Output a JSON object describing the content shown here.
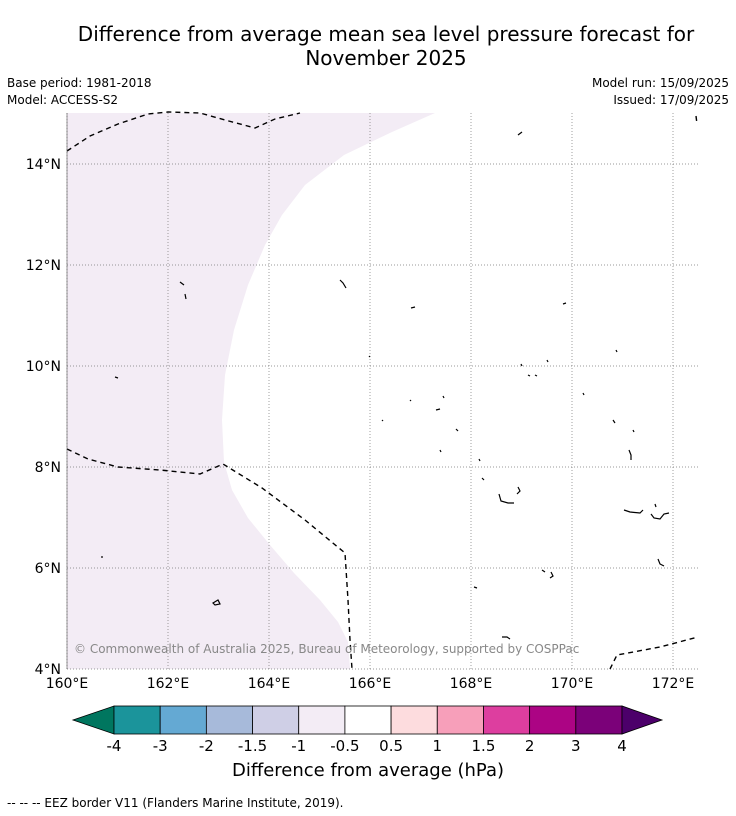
{
  "header": {
    "title_line1": "Difference from average mean sea level pressure forecast for",
    "title_line2": "November 2025",
    "base_period": "Base period: 1981-2018",
    "model": "Model: ACCESS-S2",
    "model_run": "Model run: 15/09/2025",
    "issued": "Issued: 17/09/2025"
  },
  "map": {
    "lon_ticks": [
      "160°E",
      "162°E",
      "164°E",
      "166°E",
      "168°E",
      "170°E",
      "172°E"
    ],
    "lat_ticks": [
      "14°N",
      "12°N",
      "10°N",
      "8°N",
      "6°N",
      "4°N"
    ],
    "copyright": "© Commonwealth of Australia 2025, Bureau of Meteorology, supported by COSPPac",
    "shading_color": "#f3ecf5",
    "shaded_category": "-1 to -0.5"
  },
  "colorbar": {
    "ticks": [
      "-4",
      "-3",
      "-2",
      "-1.5",
      "-1",
      "-0.5",
      "0.5",
      "1",
      "1.5",
      "2",
      "3",
      "4"
    ],
    "colors": [
      "#00765f",
      "#1b949b",
      "#64a9d3",
      "#a7bada",
      "#cfcfe6",
      "#f3ecf5",
      "#ffffff",
      "#fddcde",
      "#f79fba",
      "#dd3e9f",
      "#ac0484",
      "#7b0179",
      "#4c006a"
    ],
    "label": "Difference from average (hPa)"
  },
  "footer": {
    "legend": "--  --  -- EEZ border V11 (Flanders Marine Institute, 2019)."
  }
}
